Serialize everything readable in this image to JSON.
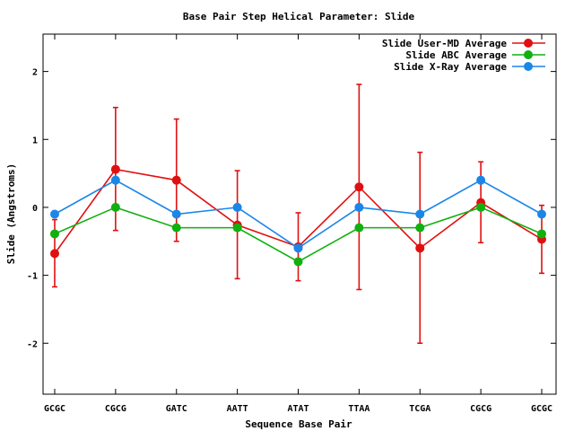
{
  "chart_data": {
    "type": "line",
    "title": "Base Pair Step Helical Parameter: Slide",
    "xlabel": "Sequence Base Pair",
    "ylabel": "Slide (Angstroms)",
    "categories": [
      "GCGC",
      "CGCG",
      "GATC",
      "AATT",
      "ATAT",
      "TTAA",
      "TCGA",
      "CGCG",
      "GCGC"
    ],
    "ylim": [
      -2.75,
      2.55
    ],
    "yticks": [
      -2,
      -1,
      0,
      1,
      2
    ],
    "grid": false,
    "legend_position": "top-right",
    "series": [
      {
        "name": "Slide User-MD Average",
        "color": "#e01010",
        "values": [
          -0.68,
          0.56,
          0.4,
          -0.26,
          -0.58,
          0.3,
          -0.6,
          0.07,
          -0.47
        ],
        "error_low": [
          -1.17,
          -0.34,
          -0.5,
          -1.05,
          -1.08,
          -1.21,
          -2.0,
          -0.52,
          -0.97
        ],
        "error_high": [
          -0.18,
          1.47,
          1.3,
          0.54,
          -0.08,
          1.81,
          0.81,
          0.67,
          0.03
        ]
      },
      {
        "name": "Slide ABC Average",
        "color": "#10b010",
        "values": [
          -0.39,
          0.0,
          -0.3,
          -0.3,
          -0.8,
          -0.3,
          -0.3,
          0.0,
          -0.39
        ]
      },
      {
        "name": "Slide X-Ray Average",
        "color": "#1a86e8",
        "values": [
          -0.1,
          0.4,
          -0.1,
          0.0,
          -0.6,
          0.0,
          -0.1,
          0.4,
          -0.1
        ]
      }
    ]
  }
}
